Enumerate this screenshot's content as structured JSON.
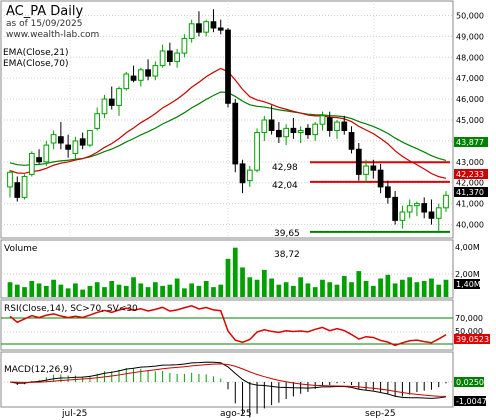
{
  "header": {
    "title": "AC_PA Daily",
    "date_line": "as of 15/09/2025",
    "site": "www.wealth-lab.com"
  },
  "price_pane": {
    "ema_fast_label": "EMA(Close,21)",
    "ema_slow_label": "EMA(Close,70)",
    "y_ticks": [
      "50,000",
      "49,000",
      "48,000",
      "47,000",
      "46,000",
      "45,000",
      "44,000",
      "43,000",
      "42,000",
      "41,000",
      "40,000"
    ],
    "ema_slow_value": "43,877",
    "ema_fast_value": "42,233",
    "close_value": "41,370",
    "annotations": [
      "42,98",
      "42,04",
      "39,65"
    ],
    "colors": {
      "up": "#00a000",
      "down": "#000000",
      "ema_fast": "#cc0000",
      "ema_slow": "#008000",
      "resistance": "#e00000",
      "support": "#008000"
    }
  },
  "volume_pane": {
    "label": "Volume",
    "peak_label": "38,72",
    "y_ticks": [
      "4,00M",
      "2,00M"
    ],
    "last_value": "1,40M"
  },
  "rsi_pane": {
    "label": "RSI(Close,14), SC>70, SV<30",
    "y_ticks": [
      "70,000",
      "50,000"
    ],
    "last_value": "39,0523"
  },
  "macd_pane": {
    "label": "MACD(12,26,9)",
    "top_value": "0,0250",
    "last_value": "-1,0047"
  },
  "x_axis": {
    "labels": [
      "jul-25",
      "ago-25",
      "sep-25"
    ]
  },
  "chart_data": {
    "type": "candlestick",
    "ohlc": [
      [
        41.8,
        42.6,
        41.3,
        42.5
      ],
      [
        42.0,
        42.3,
        41.1,
        41.3
      ],
      [
        41.3,
        42.4,
        41.2,
        42.3
      ],
      [
        42.4,
        43.5,
        42.3,
        43.4
      ],
      [
        43.2,
        43.6,
        42.9,
        43.0
      ],
      [
        43.0,
        44.0,
        42.8,
        43.8
      ],
      [
        43.9,
        44.5,
        43.6,
        44.3
      ],
      [
        44.2,
        44.9,
        43.6,
        43.9
      ],
      [
        43.8,
        44.3,
        43.2,
        43.6
      ],
      [
        43.4,
        44.2,
        43.1,
        44.0
      ],
      [
        44.1,
        44.4,
        43.6,
        43.8
      ],
      [
        43.8,
        44.5,
        43.7,
        44.5
      ],
      [
        44.6,
        45.6,
        44.5,
        45.3
      ],
      [
        45.3,
        46.2,
        45.1,
        46.0
      ],
      [
        46.0,
        46.6,
        45.5,
        45.7
      ],
      [
        45.7,
        46.6,
        45.2,
        46.5
      ],
      [
        46.5,
        47.3,
        46.4,
        47.2
      ],
      [
        47.1,
        47.6,
        46.8,
        46.9
      ],
      [
        46.9,
        47.5,
        46.6,
        47.4
      ],
      [
        47.4,
        47.9,
        46.9,
        47.1
      ],
      [
        47.1,
        47.8,
        46.9,
        47.6
      ],
      [
        47.6,
        48.6,
        47.5,
        48.3
      ],
      [
        48.3,
        48.7,
        47.6,
        47.8
      ],
      [
        47.8,
        48.4,
        47.5,
        48.2
      ],
      [
        48.2,
        49.1,
        48.0,
        48.9
      ],
      [
        48.9,
        49.8,
        48.7,
        49.6
      ],
      [
        49.6,
        50.2,
        49.0,
        49.2
      ],
      [
        49.2,
        49.8,
        49.0,
        49.7
      ],
      [
        49.7,
        50.3,
        49.2,
        49.4
      ],
      [
        49.4,
        49.8,
        49.1,
        49.3
      ],
      [
        49.3,
        49.4,
        45.6,
        45.8
      ],
      [
        45.8,
        46.0,
        42.5,
        42.9
      ],
      [
        42.9,
        43.1,
        41.5,
        42.0
      ],
      [
        42.1,
        42.8,
        41.8,
        42.6
      ],
      [
        42.6,
        44.6,
        42.5,
        44.4
      ],
      [
        44.4,
        45.2,
        44.0,
        45.0
      ],
      [
        45.0,
        45.7,
        44.3,
        44.5
      ],
      [
        44.5,
        44.9,
        43.9,
        44.2
      ],
      [
        44.2,
        44.8,
        43.8,
        44.6
      ],
      [
        44.6,
        45.1,
        44.1,
        44.4
      ],
      [
        44.4,
        44.7,
        43.9,
        44.5
      ],
      [
        44.6,
        44.8,
        44.1,
        44.3
      ],
      [
        44.3,
        44.9,
        44.0,
        44.8
      ],
      [
        44.8,
        45.4,
        44.5,
        45.2
      ],
      [
        45.1,
        45.4,
        44.2,
        44.5
      ],
      [
        44.5,
        45.0,
        44.1,
        44.9
      ],
      [
        44.9,
        45.2,
        44.3,
        44.5
      ],
      [
        44.4,
        44.7,
        43.4,
        43.6
      ],
      [
        43.6,
        43.9,
        42.1,
        42.4
      ],
      [
        42.4,
        43.1,
        42.0,
        42.8
      ],
      [
        42.8,
        43.1,
        42.2,
        42.6
      ],
      [
        42.6,
        42.9,
        41.5,
        41.8
      ],
      [
        41.8,
        42.1,
        41.0,
        41.3
      ],
      [
        41.3,
        41.6,
        40.0,
        40.2
      ],
      [
        40.2,
        40.9,
        39.8,
        40.6
      ],
      [
        40.6,
        41.2,
        40.3,
        40.9
      ],
      [
        40.9,
        41.1,
        40.4,
        41.0
      ],
      [
        41.0,
        41.3,
        40.3,
        40.6
      ],
      [
        40.6,
        41.2,
        40.0,
        40.3
      ],
      [
        40.3,
        41.0,
        39.7,
        40.8
      ],
      [
        40.8,
        41.6,
        40.6,
        41.4
      ]
    ],
    "volume_m": [
      1.2,
      1.0,
      0.8,
      1.3,
      1.1,
      0.9,
      1.4,
      1.0,
      0.7,
      1.1,
      0.6,
      0.9,
      1.2,
      0.8,
      1.3,
      1.0,
      0.9,
      1.6,
      1.1,
      0.8,
      1.2,
      0.9,
      1.0,
      1.5,
      0.7,
      1.1,
      0.9,
      1.3,
      0.8,
      1.0,
      3.1,
      4.0,
      2.4,
      1.6,
      1.4,
      2.2,
      1.5,
      1.0,
      1.2,
      0.9,
      1.6,
      1.1,
      0.8,
      1.4,
      1.2,
      1.0,
      1.7,
      1.2,
      2.1,
      1.3,
      0.9,
      1.5,
      1.8,
      1.1,
      1.4,
      1.6,
      1.2,
      1.3,
      1.5,
      1.0,
      1.4
    ],
    "ylim_price": [
      39.5,
      50.5
    ],
    "ylim_volume_m": [
      0,
      4.3
    ],
    "ylim_rsi": [
      25,
      80
    ],
    "hlines": {
      "resistance": [
        42.98,
        42.04
      ],
      "support": [
        39.65
      ]
    }
  }
}
